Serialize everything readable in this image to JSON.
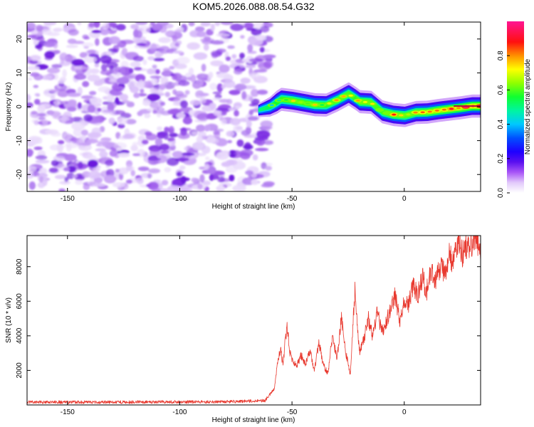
{
  "figure_title": "KOM5.2026.088.08.54.G32",
  "chart_data": [
    {
      "type": "heatmap",
      "title": "KOM5.2026.088.08.54.G32",
      "xlabel": "Height of straight line (km)",
      "ylabel": "Frequency (Hz)",
      "xlim": [
        -168,
        34
      ],
      "ylim": [
        -25,
        25
      ],
      "xticks": [
        -150,
        -100,
        -50,
        0
      ],
      "xtick_labels": [
        "-150",
        "-100",
        "-50",
        "0"
      ],
      "yticks": [
        -20,
        -10,
        0,
        10,
        20
      ],
      "ytick_labels": [
        "-20",
        "-10",
        "0",
        "10",
        "20"
      ],
      "grid": false,
      "noise_region": {
        "x_range": [
          -168,
          -60
        ],
        "y_range": [
          -25,
          25
        ],
        "amplitude_range": [
          0.0,
          0.12
        ]
      },
      "signal_ridge": {
        "description": "narrow-band frequency ridge with normalized amplitude rising along the height axis",
        "x": [
          -65,
          -60,
          -55,
          -50,
          -45,
          -40,
          -35,
          -30,
          -25,
          -22,
          -20,
          -15,
          -10,
          -5,
          0,
          5,
          10,
          15,
          20,
          25,
          30,
          34
        ],
        "frequency": [
          -1,
          0,
          2.2,
          1.8,
          1.2,
          0.6,
          0.5,
          2.0,
          3.8,
          2.5,
          1.5,
          1.3,
          -1.5,
          -2.3,
          -2.6,
          -1.7,
          -1.6,
          -1.1,
          -0.7,
          -0.3,
          0.2,
          0.2
        ],
        "amplitude": [
          0.3,
          0.45,
          0.6,
          0.7,
          0.65,
          0.7,
          0.6,
          0.75,
          0.7,
          0.6,
          0.8,
          0.7,
          0.65,
          0.8,
          0.7,
          0.75,
          0.8,
          0.85,
          0.9,
          0.9,
          0.95,
          1.0
        ]
      },
      "colorbar": {
        "label": "Normalized spectral amplitude",
        "range": [
          0.0,
          1.0
        ],
        "ticks": [
          0.0,
          0.2,
          0.4,
          0.6,
          0.8
        ],
        "tick_labels": [
          "0.0",
          "0.2",
          "0.4",
          "0.6",
          "0.8"
        ],
        "colors": [
          "#ffffff",
          "#d5b8f7",
          "#8a2be2",
          "#3f00ff",
          "#0000ff",
          "#00c8ff",
          "#00ff80",
          "#40ff00",
          "#ffff00",
          "#ff8000",
          "#ff0000",
          "#ff1493"
        ]
      }
    },
    {
      "type": "line",
      "xlabel": "Height of straight line (km)",
      "ylabel": "SNR (10 * v/v)",
      "xlim": [
        -168,
        34
      ],
      "ylim": [
        0,
        9800
      ],
      "xticks": [
        -150,
        -100,
        -50,
        0
      ],
      "xtick_labels": [
        "-150",
        "-100",
        "-50",
        "0"
      ],
      "yticks": [
        2000,
        4000,
        6000,
        8000
      ],
      "ytick_labels": [
        "2000",
        "4000",
        "6000",
        "8000"
      ],
      "grid": false,
      "series": [
        {
          "name": "SNR",
          "color": "#e8392f",
          "x": [
            -168,
            -140,
            -110,
            -80,
            -62,
            -58,
            -56,
            -55,
            -54,
            -53,
            -52,
            -51,
            -50,
            -48,
            -46,
            -44,
            -42,
            -40,
            -38,
            -36,
            -34,
            -32,
            -30,
            -28,
            -26,
            -24,
            -22,
            -20,
            -18,
            -16,
            -14,
            -12,
            -10,
            -8,
            -6,
            -4,
            -2,
            0,
            2,
            4,
            6,
            8,
            10,
            12,
            14,
            16,
            18,
            20,
            22,
            24,
            26,
            28,
            30,
            32,
            34
          ],
          "values": [
            160,
            160,
            170,
            180,
            250,
            900,
            2800,
            3200,
            2200,
            3800,
            4550,
            3000,
            2600,
            2200,
            2900,
            2400,
            3100,
            2000,
            3600,
            2300,
            1800,
            4100,
            2600,
            5100,
            3000,
            1800,
            6700,
            3100,
            3800,
            5000,
            3900,
            5400,
            4200,
            4800,
            5600,
            6300,
            4900,
            6100,
            5800,
            7000,
            6300,
            7400,
            6600,
            7800,
            7200,
            8100,
            7600,
            8600,
            8200,
            9500,
            8700,
            9300,
            9100,
            9750,
            9000
          ]
        }
      ]
    }
  ]
}
